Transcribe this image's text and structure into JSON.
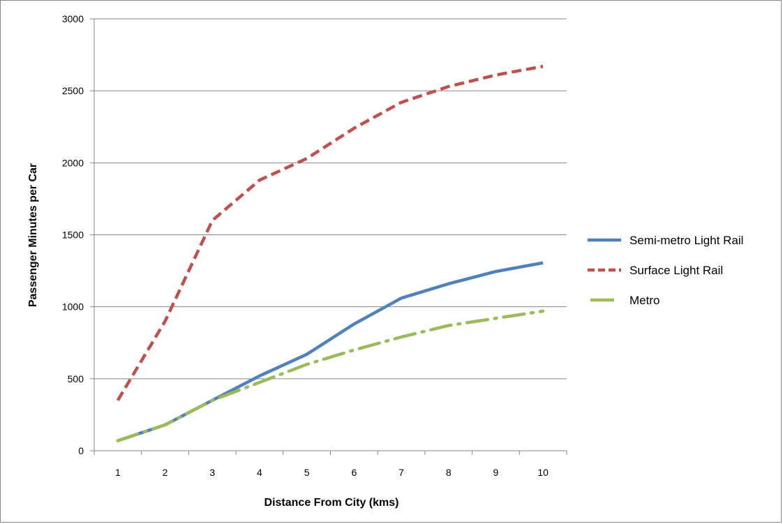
{
  "chart_data": {
    "type": "line",
    "title": "",
    "xlabel": "Distance From City (kms)",
    "ylabel": "Passenger Minutes per Car",
    "categories": [
      "1",
      "2",
      "3",
      "4",
      "5",
      "6",
      "7",
      "8",
      "9",
      "10"
    ],
    "ylim": [
      0,
      3000
    ],
    "yticks": [
      "0",
      "500",
      "1000",
      "1500",
      "2000",
      "2500",
      "3000"
    ],
    "grid": true,
    "legend_position": "right",
    "series": [
      {
        "name": "Semi-metro Light Rail",
        "color": "#4F81BD",
        "dash": "solid",
        "values": [
          70,
          180,
          350,
          520,
          670,
          880,
          1060,
          1160,
          1245,
          1305
        ]
      },
      {
        "name": "Surface Light Rail",
        "color": "#C0504D",
        "dash": "dash",
        "values": [
          350,
          900,
          1600,
          1880,
          2030,
          2240,
          2420,
          2530,
          2610,
          2670
        ]
      },
      {
        "name": "Metro",
        "color": "#9BBB59",
        "dash": "long-dash-dot",
        "values": [
          70,
          180,
          350,
          475,
          600,
          700,
          790,
          870,
          920,
          970
        ]
      }
    ]
  }
}
